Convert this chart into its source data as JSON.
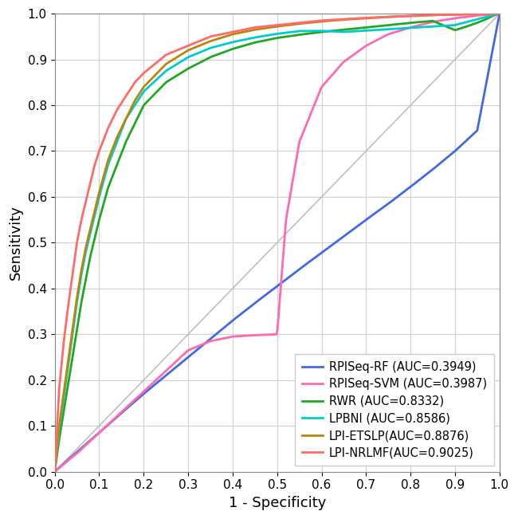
{
  "title": "",
  "xlabel": "1 - Specificity",
  "ylabel": "Sensitivity",
  "xlim": [
    0.0,
    1.0
  ],
  "ylim": [
    0.0,
    1.0
  ],
  "xticks": [
    0.0,
    0.1,
    0.2,
    0.3,
    0.4,
    0.5,
    0.6,
    0.7,
    0.8,
    0.9,
    1.0
  ],
  "yticks": [
    0.0,
    0.1,
    0.2,
    0.3,
    0.4,
    0.5,
    0.6,
    0.7,
    0.8,
    0.9,
    1.0
  ],
  "background_color": "#ffffff",
  "grid_color": "#d0d0d0",
  "curves": [
    {
      "name": "LPI-NRLMF(AUC=0.9025)",
      "color": "#FF6B6B",
      "auc": 0.9025
    },
    {
      "name": "LPI-ETSLP(AUC=0.8876)",
      "color": "#B8860B",
      "auc": 0.8876
    },
    {
      "name": "RWR (AUC=0.8332)",
      "color": "#22A722",
      "auc": 0.8332
    },
    {
      "name": "LPBNI (AUC=0.8586)",
      "color": "#00CCCC",
      "auc": 0.8586
    },
    {
      "name": "RPISeq-RF (AUC=0.3949)",
      "color": "#4169E1",
      "auc": 0.3949
    },
    {
      "name": "RPISeq-SVM (AUC=0.3987)",
      "color": "#FF69B4",
      "auc": 0.3987
    }
  ],
  "diagonal_color": "#c0c0c0",
  "linewidth": 2.0,
  "legend_fontsize": 10.5,
  "axis_fontsize": 13,
  "tick_fontsize": 11,
  "nrlmf_fpr": [
    0.0,
    0.01,
    0.02,
    0.03,
    0.04,
    0.05,
    0.06,
    0.07,
    0.08,
    0.09,
    0.1,
    0.12,
    0.14,
    0.16,
    0.18,
    0.2,
    0.25,
    0.3,
    0.35,
    0.4,
    0.45,
    0.5,
    0.55,
    0.6,
    0.65,
    0.7,
    0.75,
    0.8,
    0.85,
    0.9,
    0.95,
    1.0
  ],
  "nrlmf_tpr": [
    0.0,
    0.18,
    0.28,
    0.36,
    0.43,
    0.5,
    0.55,
    0.59,
    0.63,
    0.67,
    0.7,
    0.75,
    0.79,
    0.82,
    0.85,
    0.87,
    0.91,
    0.93,
    0.95,
    0.96,
    0.97,
    0.975,
    0.98,
    0.985,
    0.988,
    0.991,
    0.993,
    0.995,
    0.997,
    0.998,
    0.999,
    1.0
  ],
  "etslp_fpr": [
    0.0,
    0.01,
    0.02,
    0.03,
    0.04,
    0.05,
    0.06,
    0.07,
    0.08,
    0.09,
    0.1,
    0.12,
    0.14,
    0.16,
    0.18,
    0.2,
    0.25,
    0.3,
    0.35,
    0.4,
    0.45,
    0.5,
    0.55,
    0.6,
    0.65,
    0.7,
    0.75,
    0.8,
    0.85,
    0.9,
    0.95,
    1.0
  ],
  "etslp_tpr": [
    0.0,
    0.1,
    0.17,
    0.24,
    0.31,
    0.38,
    0.44,
    0.49,
    0.53,
    0.57,
    0.61,
    0.68,
    0.73,
    0.77,
    0.81,
    0.84,
    0.89,
    0.92,
    0.94,
    0.955,
    0.965,
    0.972,
    0.978,
    0.983,
    0.987,
    0.99,
    0.993,
    0.995,
    0.997,
    0.998,
    0.999,
    1.0
  ],
  "rwr_fpr": [
    0.0,
    0.01,
    0.02,
    0.03,
    0.04,
    0.05,
    0.06,
    0.07,
    0.08,
    0.09,
    0.1,
    0.12,
    0.14,
    0.16,
    0.18,
    0.2,
    0.25,
    0.3,
    0.35,
    0.4,
    0.45,
    0.5,
    0.55,
    0.6,
    0.65,
    0.7,
    0.75,
    0.8,
    0.85,
    0.9,
    0.92,
    0.95,
    0.97,
    0.98,
    0.99,
    1.0
  ],
  "rwr_tpr": [
    0.0,
    0.07,
    0.13,
    0.19,
    0.25,
    0.31,
    0.37,
    0.42,
    0.47,
    0.51,
    0.55,
    0.62,
    0.67,
    0.72,
    0.76,
    0.8,
    0.85,
    0.88,
    0.905,
    0.923,
    0.937,
    0.947,
    0.954,
    0.96,
    0.965,
    0.97,
    0.975,
    0.98,
    0.984,
    0.964,
    0.97,
    0.98,
    0.988,
    0.993,
    0.997,
    1.0
  ],
  "lpbni_fpr": [
    0.0,
    0.01,
    0.02,
    0.03,
    0.04,
    0.05,
    0.06,
    0.07,
    0.08,
    0.09,
    0.1,
    0.12,
    0.14,
    0.16,
    0.18,
    0.2,
    0.25,
    0.3,
    0.35,
    0.4,
    0.45,
    0.5,
    0.55,
    0.6,
    0.65,
    0.7,
    0.75,
    0.8,
    0.85,
    0.9,
    0.95,
    1.0
  ],
  "lpbni_tpr": [
    0.0,
    0.09,
    0.16,
    0.23,
    0.3,
    0.37,
    0.43,
    0.48,
    0.52,
    0.56,
    0.6,
    0.67,
    0.72,
    0.77,
    0.8,
    0.83,
    0.875,
    0.905,
    0.925,
    0.938,
    0.948,
    0.956,
    0.962,
    0.9625,
    0.96,
    0.963,
    0.966,
    0.969,
    0.972,
    0.975,
    0.988,
    1.0
  ],
  "rpirf_fpr": [
    0.0,
    0.05,
    0.1,
    0.15,
    0.2,
    0.25,
    0.3,
    0.35,
    0.4,
    0.45,
    0.5,
    0.55,
    0.6,
    0.65,
    0.7,
    0.75,
    0.8,
    0.85,
    0.9,
    0.95,
    1.0
  ],
  "rpirf_tpr": [
    0.0,
    0.043,
    0.085,
    0.128,
    0.17,
    0.21,
    0.25,
    0.29,
    0.33,
    0.368,
    0.405,
    0.442,
    0.478,
    0.514,
    0.55,
    0.585,
    0.622,
    0.66,
    0.7,
    0.745,
    1.0
  ],
  "rpisvm_fpr": [
    0.0,
    0.01,
    0.02,
    0.05,
    0.1,
    0.15,
    0.2,
    0.25,
    0.3,
    0.35,
    0.4,
    0.45,
    0.5,
    0.52,
    0.55,
    0.6,
    0.65,
    0.7,
    0.75,
    0.8,
    0.85,
    0.9,
    0.95,
    1.0
  ],
  "rpisvm_tpr": [
    0.0,
    0.008,
    0.016,
    0.04,
    0.085,
    0.13,
    0.175,
    0.22,
    0.265,
    0.285,
    0.295,
    0.298,
    0.3,
    0.55,
    0.72,
    0.84,
    0.895,
    0.93,
    0.955,
    0.97,
    0.982,
    0.99,
    0.996,
    1.0
  ]
}
